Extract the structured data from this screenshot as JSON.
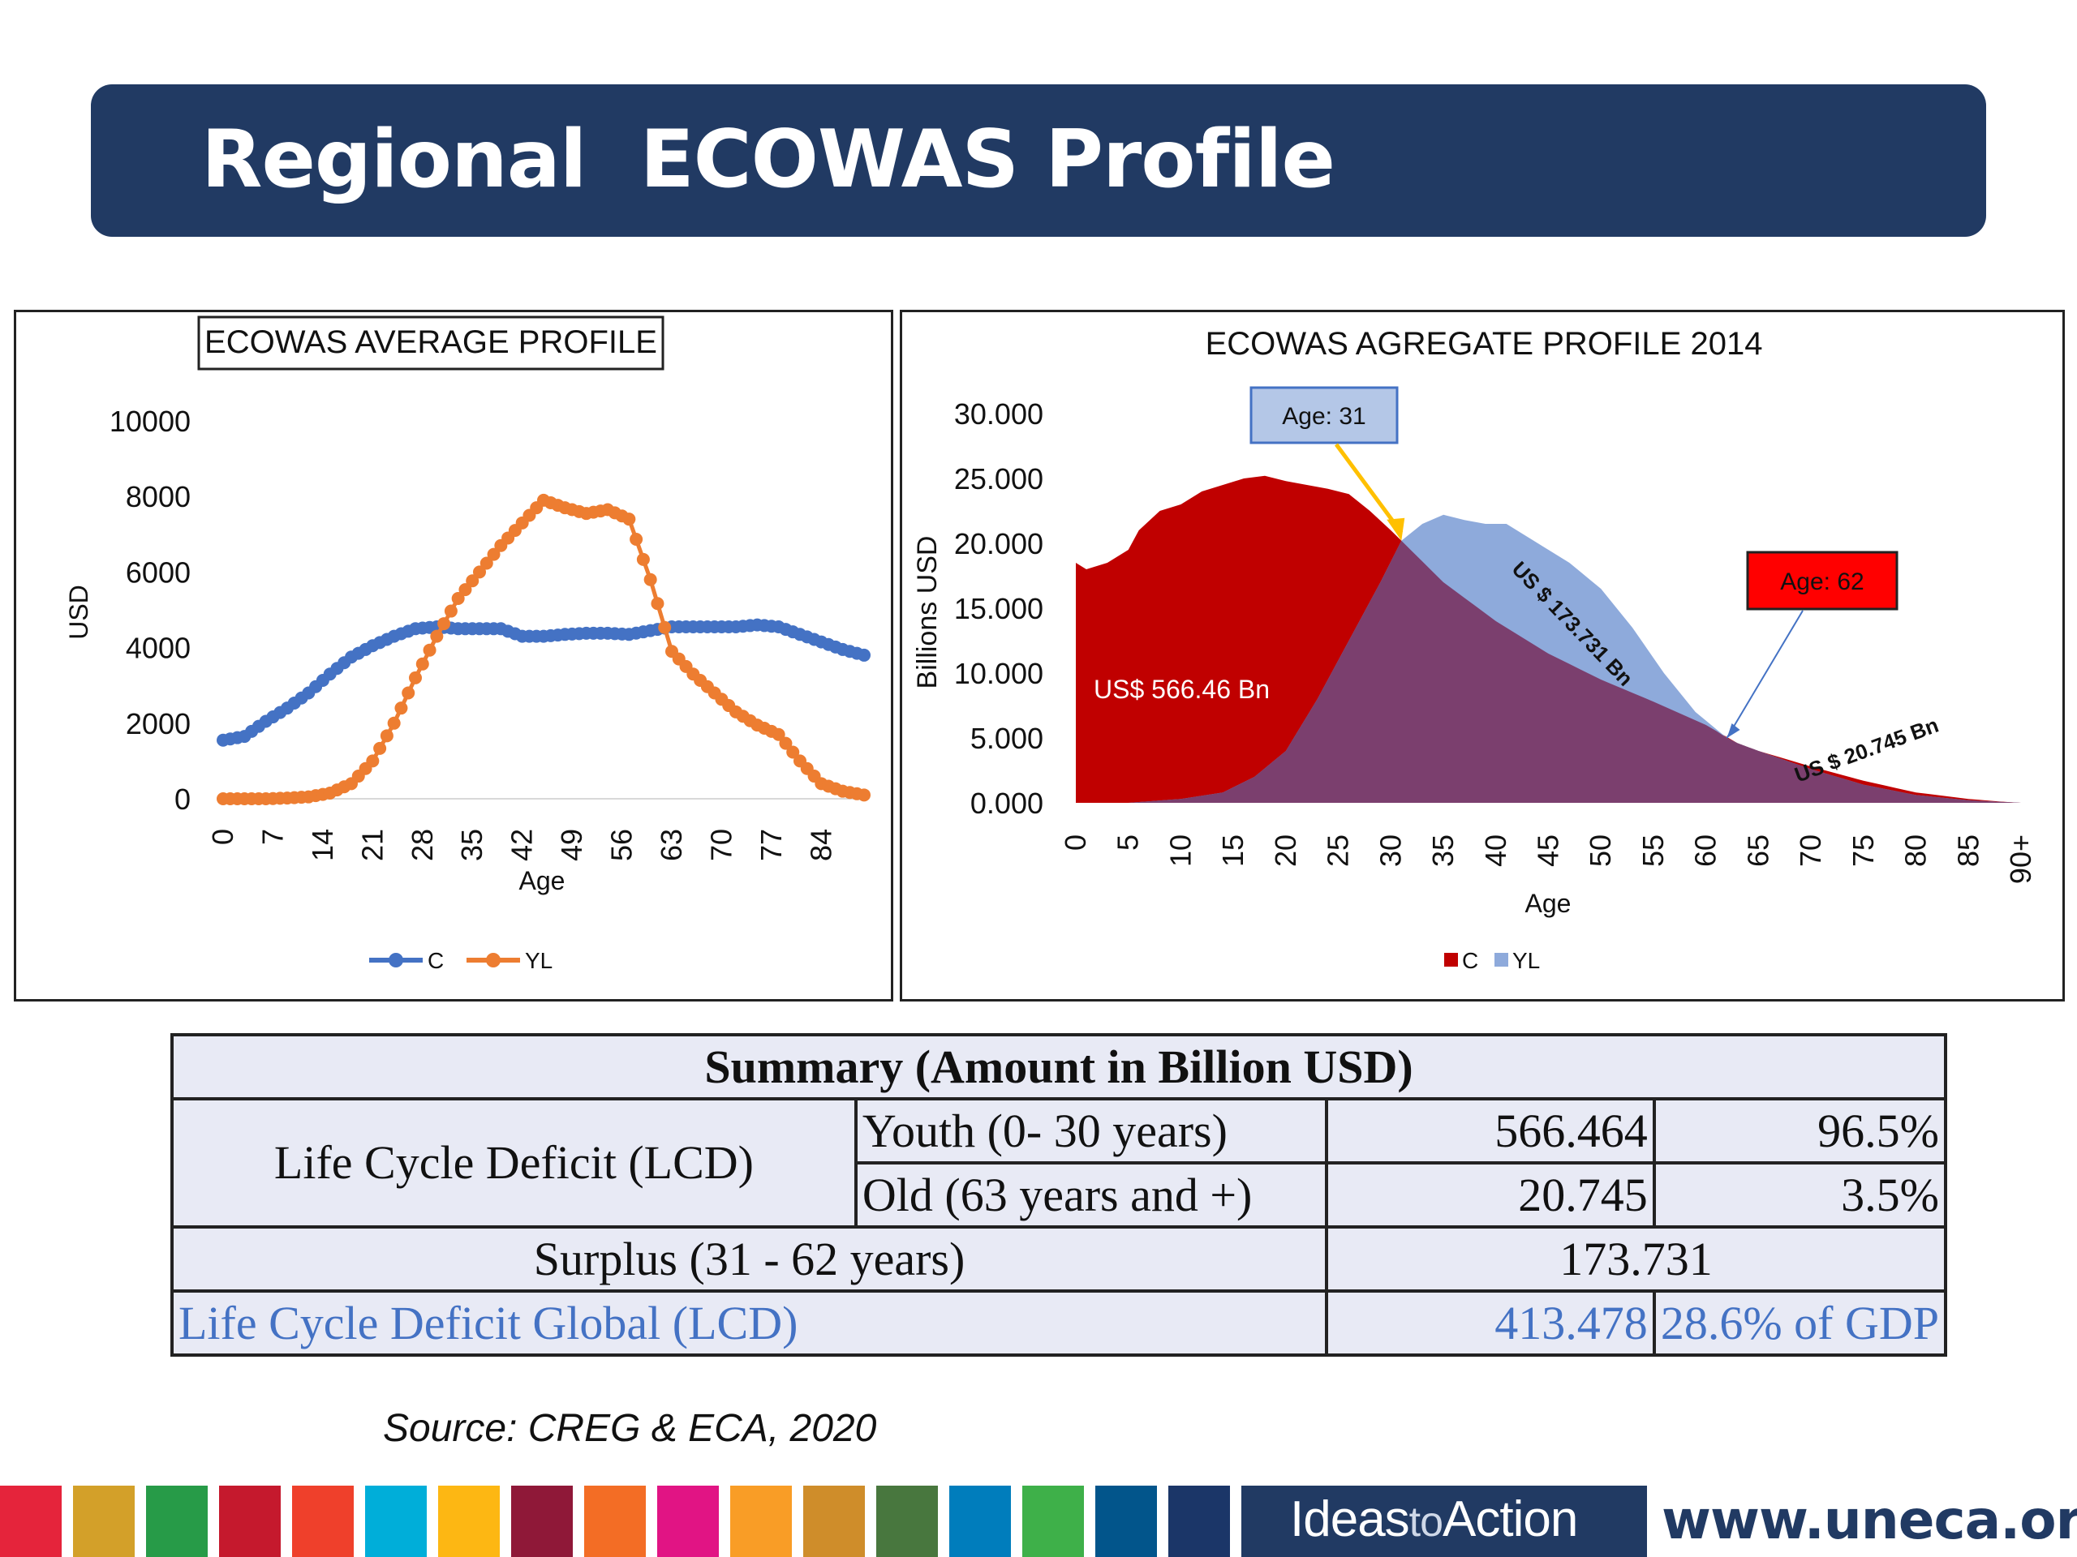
{
  "slide": {
    "title": "Regional  ECOWAS Profile",
    "source": "Source: CREG & ECA, 2020",
    "footer": {
      "brand_ideas": "Ideas",
      "brand_to": "to",
      "brand_action": "Action",
      "website": "www.uneca.org",
      "stripe_colors": [
        "#e5243b",
        "#d3a029",
        "#279b48",
        "#c5192d",
        "#ef402b",
        "#00aed9",
        "#fdb713",
        "#8f1838",
        "#f36d25",
        "#e11484",
        "#f99d26",
        "#cf8d2a",
        "#48773e",
        "#007dbc",
        "#3eb049",
        "#02558b",
        "#1b3668"
      ]
    }
  },
  "chart_data": [
    {
      "type": "line",
      "title": "ECOWAS AVERAGE PROFILE",
      "xlabel": "Age",
      "ylabel": "USD",
      "ylim": [
        0,
        10000
      ],
      "yticks": [
        0,
        2000,
        4000,
        6000,
        8000,
        10000
      ],
      "xticks": [
        0,
        7,
        14,
        21,
        28,
        35,
        42,
        49,
        56,
        63,
        70,
        77,
        84
      ],
      "xlim": [
        0,
        90
      ],
      "legend": "bottom",
      "series": [
        {
          "name": "C",
          "color": "#4472c4",
          "points": [
            [
              0,
              1550
            ],
            [
              3,
              1650
            ],
            [
              6,
              2050
            ],
            [
              9,
              2400
            ],
            [
              12,
              2800
            ],
            [
              15,
              3300
            ],
            [
              18,
              3750
            ],
            [
              21,
              4050
            ],
            [
              24,
              4300
            ],
            [
              27,
              4500
            ],
            [
              30,
              4550
            ],
            [
              33,
              4500
            ],
            [
              36,
              4500
            ],
            [
              39,
              4500
            ],
            [
              42,
              4300
            ],
            [
              45,
              4300
            ],
            [
              48,
              4350
            ],
            [
              51,
              4380
            ],
            [
              54,
              4380
            ],
            [
              57,
              4350
            ],
            [
              60,
              4450
            ],
            [
              63,
              4550
            ],
            [
              66,
              4550
            ],
            [
              69,
              4550
            ],
            [
              72,
              4550
            ],
            [
              75,
              4600
            ],
            [
              78,
              4550
            ],
            [
              81,
              4350
            ],
            [
              84,
              4150
            ],
            [
              87,
              3950
            ],
            [
              90,
              3800
            ]
          ]
        },
        {
          "name": "YL",
          "color": "#ed7d31",
          "points": [
            [
              0,
              0
            ],
            [
              3,
              0
            ],
            [
              6,
              0
            ],
            [
              9,
              20
            ],
            [
              12,
              50
            ],
            [
              15,
              150
            ],
            [
              18,
              400
            ],
            [
              21,
              1000
            ],
            [
              24,
              2000
            ],
            [
              27,
              3200
            ],
            [
              30,
              4300
            ],
            [
              33,
              5300
            ],
            [
              36,
              6000
            ],
            [
              39,
              6700
            ],
            [
              42,
              7300
            ],
            [
              45,
              7900
            ],
            [
              48,
              7700
            ],
            [
              51,
              7550
            ],
            [
              54,
              7650
            ],
            [
              57,
              7400
            ],
            [
              60,
              5800
            ],
            [
              63,
              3900
            ],
            [
              66,
              3300
            ],
            [
              69,
              2800
            ],
            [
              72,
              2300
            ],
            [
              75,
              1950
            ],
            [
              78,
              1700
            ],
            [
              81,
              1000
            ],
            [
              84,
              400
            ],
            [
              87,
              200
            ],
            [
              90,
              100
            ]
          ]
        }
      ]
    },
    {
      "type": "area",
      "title": "ECOWAS AGREGATE PROFILE 2014",
      "xlabel": "Age",
      "ylabel": "Billions USD",
      "ylim": [
        0,
        30
      ],
      "xlim": [
        0,
        90
      ],
      "ytick_labels": [
        "0.000",
        "5.000",
        "10.000",
        "15.000",
        "20.000",
        "25.000",
        "30.000"
      ],
      "ytick_values": [
        0,
        5,
        10,
        15,
        20,
        25,
        30
      ],
      "xtick_labels": [
        "0",
        "5",
        "10",
        "15",
        "20",
        "25",
        "30",
        "35",
        "40",
        "45",
        "50",
        "55",
        "60",
        "65",
        "70",
        "75",
        "80",
        "85",
        "90+"
      ],
      "legend": "bottom",
      "series": [
        {
          "name": "C",
          "color": "#c00000",
          "points": [
            [
              0,
              18.5
            ],
            [
              1,
              18
            ],
            [
              3,
              18.5
            ],
            [
              5,
              19.5
            ],
            [
              6,
              21
            ],
            [
              8,
              22.5
            ],
            [
              10,
              23
            ],
            [
              12,
              24
            ],
            [
              14,
              24.5
            ],
            [
              16,
              25
            ],
            [
              18,
              25.2
            ],
            [
              20,
              24.8
            ],
            [
              22,
              24.5
            ],
            [
              24,
              24.2
            ],
            [
              26,
              23.8
            ],
            [
              28,
              22.5
            ],
            [
              30,
              21
            ],
            [
              31,
              20.2
            ],
            [
              35,
              17
            ],
            [
              40,
              14
            ],
            [
              45,
              11.5
            ],
            [
              50,
              9.5
            ],
            [
              55,
              7.8
            ],
            [
              60,
              6
            ],
            [
              63,
              4.6
            ],
            [
              65,
              4
            ],
            [
              70,
              2.8
            ],
            [
              75,
              1.7
            ],
            [
              80,
              0.8
            ],
            [
              85,
              0.3
            ],
            [
              88,
              0.1
            ],
            [
              90,
              0
            ]
          ]
        },
        {
          "name": "YL",
          "color": "#8eaadb",
          "points": [
            [
              0,
              0
            ],
            [
              5,
              0
            ],
            [
              10,
              0.3
            ],
            [
              14,
              0.8
            ],
            [
              17,
              2
            ],
            [
              20,
              4
            ],
            [
              23,
              8
            ],
            [
              26,
              12.5
            ],
            [
              29,
              17
            ],
            [
              31,
              20.2
            ],
            [
              33,
              21.5
            ],
            [
              35,
              22.2
            ],
            [
              37,
              21.8
            ],
            [
              39,
              21.5
            ],
            [
              41,
              21.5
            ],
            [
              43,
              20.5
            ],
            [
              45,
              19.5
            ],
            [
              47,
              18.5
            ],
            [
              50,
              16.5
            ],
            [
              53,
              13.5
            ],
            [
              56,
              10
            ],
            [
              59,
              7
            ],
            [
              62,
              5
            ],
            [
              63,
              4.6
            ],
            [
              65,
              4
            ],
            [
              70,
              2.6
            ],
            [
              75,
              1.4
            ],
            [
              80,
              0.6
            ],
            [
              85,
              0.2
            ],
            [
              90,
              0
            ]
          ]
        }
      ],
      "annotations": [
        {
          "text": "Age: 31",
          "x": 31
        },
        {
          "text": "Age: 62",
          "x": 62
        },
        {
          "text": "US$ 566.46 Bn"
        },
        {
          "text": "US $ 173.731 Bn"
        },
        {
          "text": "US $ 20.745 Bn"
        }
      ]
    }
  ],
  "summary": {
    "header": "Summary (Amount in Billion USD)",
    "lcd_label": "Life Cycle Deficit (LCD)",
    "youth_label": "Youth (0- 30 years)",
    "youth_value": "566.464",
    "youth_pct": "96.5%",
    "old_label": "Old (63 years and +)",
    "old_value": "20.745",
    "old_pct": "3.5%",
    "surplus_label": "Surplus (31 - 62 years)",
    "surplus_value": "173.731",
    "global_label": "Life Cycle Deficit Global (LCD)",
    "global_value": "413.478",
    "global_pct": "28.6% of GDP"
  }
}
